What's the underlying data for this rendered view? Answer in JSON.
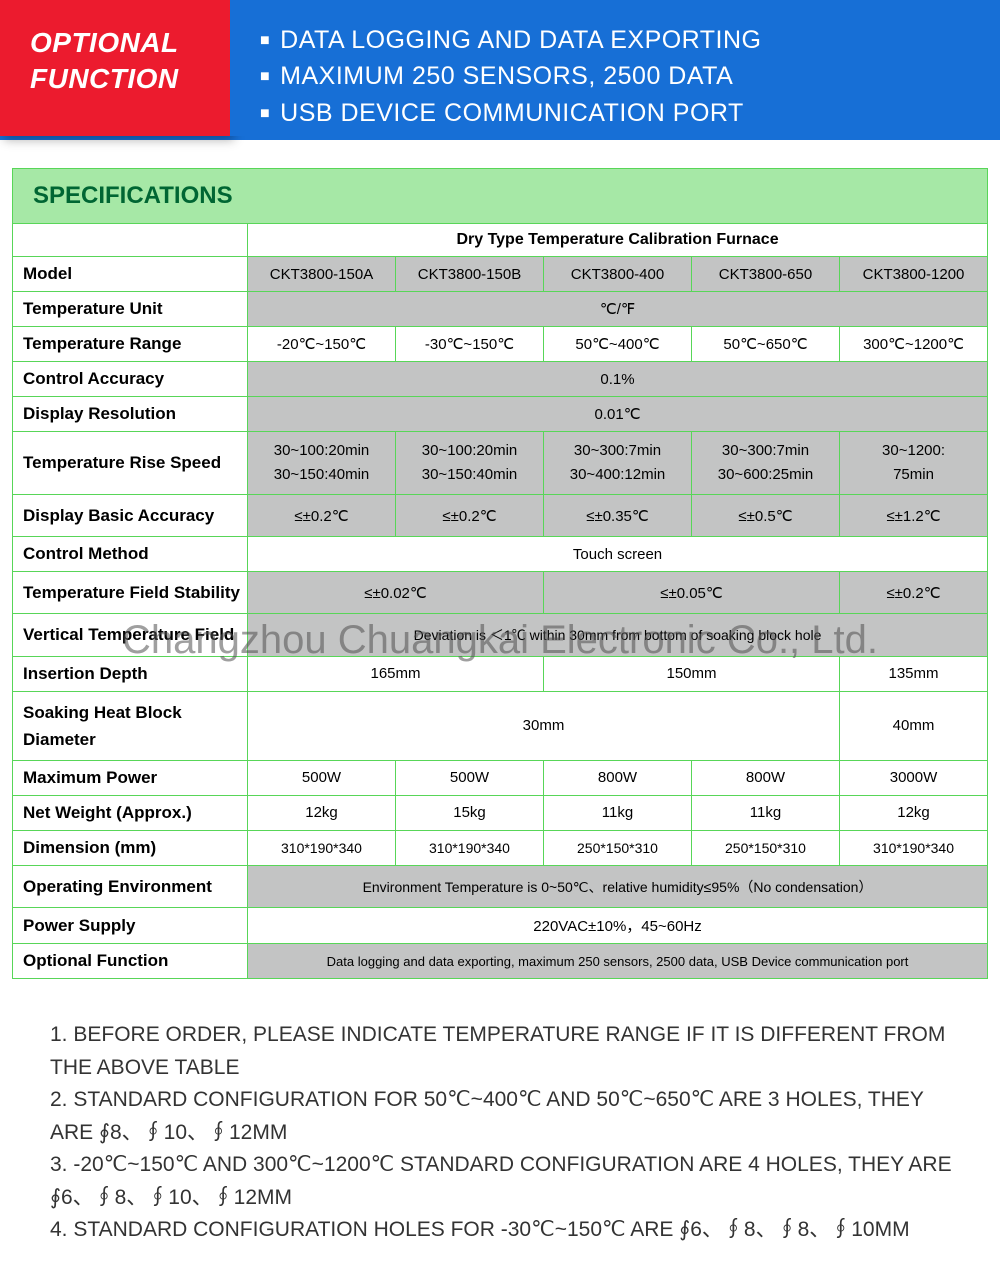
{
  "header": {
    "left_line1": "OPTIONAL",
    "left_line2": "FUNCTION",
    "bullets": [
      "DATA LOGGING AND DATA EXPORTING",
      "MAXIMUM 250 SENSORS, 2500 DATA",
      "USB DEVICE COMMUNICATION PORT"
    ],
    "bg_left": "#ec1b2e",
    "bg_right": "#176fd6"
  },
  "spec": {
    "title": "SPECIFICATIONS",
    "subtitle": "Dry Type Temperature Calibration Furnace",
    "labels": {
      "model": "Model",
      "temp_unit": "Temperature Unit",
      "temp_range": "Temperature Range",
      "control_acc": "Control Accuracy",
      "disp_res": "Display Resolution",
      "rise_speed": "Temperature Rise Speed",
      "disp_acc": "Display Basic Accuracy",
      "control_method": "Control Method",
      "field_stab": "Temperature Field Stability",
      "vert_field": "Vertical Temperature Field",
      "ins_depth": "Insertion Depth",
      "soak_dia": "Soaking Heat Block Diameter",
      "max_power": "Maximum Power",
      "net_weight": "Net Weight (Approx.)",
      "dimension": "Dimension (mm)",
      "op_env": "Operating Environment",
      "power_supply": "Power Supply",
      "opt_func": "Optional Function"
    },
    "models": [
      "CKT3800-150A",
      "CKT3800-150B",
      "CKT3800-400",
      "CKT3800-650",
      "CKT3800-1200"
    ],
    "temp_unit": "℃/℉",
    "temp_range": [
      "-20℃~150℃",
      "-30℃~150℃",
      "50℃~400℃",
      "50℃~650℃",
      "300℃~1200℃"
    ],
    "control_acc": "0.1%",
    "disp_res": "0.01℃",
    "rise_speed": [
      "30~100:20min\n30~150:40min",
      "30~100:20min\n30~150:40min",
      "30~300:7min\n30~400:12min",
      "30~300:7min\n30~600:25min",
      "30~1200:\n75min"
    ],
    "disp_acc": [
      "≤±0.2℃",
      "≤±0.2℃",
      "≤±0.35℃",
      "≤±0.5℃",
      "≤±1.2℃"
    ],
    "control_method": "Touch screen",
    "field_stab": {
      "a": "≤±0.02℃",
      "b": "≤±0.05℃",
      "c": "≤±0.2℃"
    },
    "vert_field": "Deviation is ＜1℃ within 30mm from bottom of soaking block hole",
    "ins_depth": {
      "a": "165mm",
      "b": "150mm",
      "c": "135mm"
    },
    "soak_dia": {
      "a": "30mm",
      "b": "40mm"
    },
    "max_power": [
      "500W",
      "500W",
      "800W",
      "800W",
      "3000W"
    ],
    "net_weight": [
      "12kg",
      "15kg",
      "11kg",
      "11kg",
      "12kg"
    ],
    "dimension": [
      "310*190*340",
      "310*190*340",
      "250*150*310",
      "250*150*310",
      "310*190*340"
    ],
    "op_env": "Environment Temperature is 0~50℃、relative humidity≤95%（No condensation）",
    "power_supply": "220VAC±10%，45~60Hz",
    "opt_func": "Data logging and data exporting, maximum 250 sensors, 2500 data, USB Device communication port",
    "colors": {
      "title_bg": "#a6e8a6",
      "border": "#58d658",
      "gray": "#c3c4c4",
      "title_text": "#006633"
    }
  },
  "watermark": "Changzhou Chuangkai Electronic Co., Ltd.",
  "notes": [
    "1.  BEFORE ORDER, PLEASE INDICATE TEMPERATURE RANGE IF IT IS DIFFERENT FROM THE ABOVE TABLE",
    "2.  STANDARD CONFIGURATION FOR 50℃~400℃ AND 50℃~650℃ ARE 3 HOLES, THEY ARE ∮8、∮10、∮12MM",
    "3.  -20℃~150℃ AND 300℃~1200℃ STANDARD CONFIGURATION ARE 4 HOLES, THEY ARE ∮6、∮8、∮10、∮12MM",
    "4.  STANDARD CONFIGURATION HOLES FOR -30℃~150℃ ARE ∮6、∮8、∮8、∮10MM"
  ]
}
